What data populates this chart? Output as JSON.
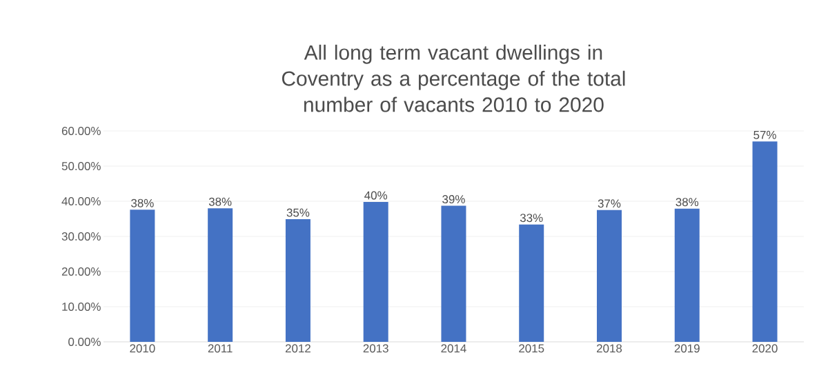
{
  "chart_data": {
    "type": "bar",
    "title": "All long term vacant dwellings in Coventry as a percentage of the total number of vacants 2010 to 2020",
    "categories": [
      "2010",
      "2011",
      "2012",
      "2013",
      "2014",
      "2015",
      "2018",
      "2019",
      "2020"
    ],
    "values": [
      37.6,
      38.0,
      34.9,
      39.8,
      38.7,
      33.4,
      37.5,
      37.9,
      57.0
    ],
    "value_labels": [
      "38%",
      "38%",
      "35%",
      "40%",
      "39%",
      "33%",
      "37%",
      "38%",
      "57%"
    ],
    "color": "#4472c4",
    "ylim": [
      0,
      60
    ],
    "yticks": [
      {
        "value": 0,
        "label": "0.00%"
      },
      {
        "value": 10,
        "label": "10.00%"
      },
      {
        "value": 20,
        "label": "20.00%"
      },
      {
        "value": 30,
        "label": "30.00%"
      },
      {
        "value": 40,
        "label": "40.00%"
      },
      {
        "value": 50,
        "label": "50.00%"
      },
      {
        "value": 60,
        "label": "60.00%"
      }
    ],
    "grid": "y"
  }
}
